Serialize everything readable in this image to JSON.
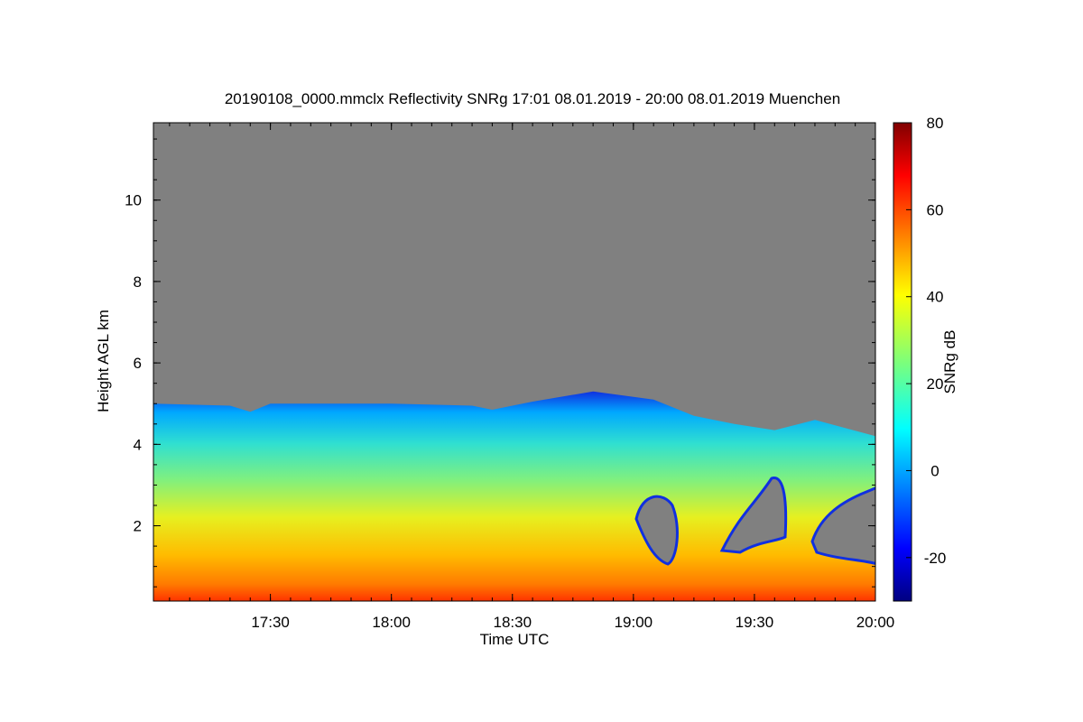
{
  "chart_data": {
    "type": "heatmap",
    "title": "20190108_0000.mmclx Reflectivity SNRg   17:01 08.01.2019 - 20:00 08.01.2019 Muenchen",
    "xlabel": "Time UTC",
    "ylabel": "Height AGL km",
    "x_range": [
      "17:01",
      "20:00"
    ],
    "y_range_km": [
      0.15,
      11.9
    ],
    "x_ticks": [
      "17:30",
      "18:00",
      "18:30",
      "19:00",
      "19:30",
      "20:00"
    ],
    "y_ticks": [
      "2",
      "4",
      "6",
      "8",
      "10"
    ],
    "colorbar": {
      "label": "SNRg dB",
      "range": [
        -30,
        80
      ],
      "ticks": [
        "-20",
        "0",
        "20",
        "40",
        "60",
        "80"
      ],
      "colormap": "jet"
    },
    "background_color": "#808080",
    "cloud_top_km": [
      {
        "time": "17:01",
        "top": 5.0
      },
      {
        "time": "17:20",
        "top": 4.95
      },
      {
        "time": "17:25",
        "top": 4.8
      },
      {
        "time": "17:30",
        "top": 5.0
      },
      {
        "time": "18:00",
        "top": 5.0
      },
      {
        "time": "18:20",
        "top": 4.95
      },
      {
        "time": "18:25",
        "top": 4.85
      },
      {
        "time": "18:35",
        "top": 5.05
      },
      {
        "time": "18:50",
        "top": 5.3
      },
      {
        "time": "19:05",
        "top": 5.1
      },
      {
        "time": "19:15",
        "top": 4.7
      },
      {
        "time": "19:25",
        "top": 4.5
      },
      {
        "time": "19:35",
        "top": 4.35
      },
      {
        "time": "19:45",
        "top": 4.6
      },
      {
        "time": "20:00",
        "top": 4.2
      }
    ]
  }
}
